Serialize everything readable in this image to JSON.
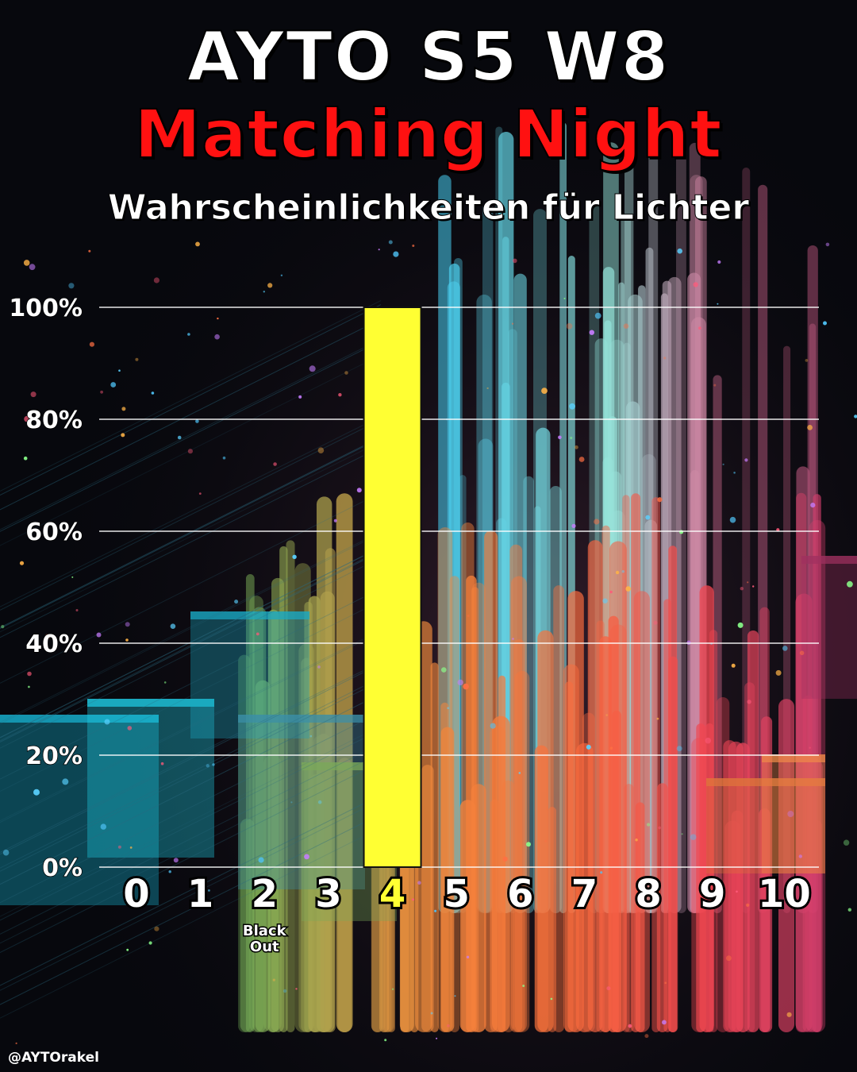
{
  "title": "AYTO S5 W8",
  "subtitle": "Matching Night",
  "description": "Wahrscheinlichkeiten für Lichter",
  "credit": "@AYTOrakel",
  "colors": {
    "title": "#ffffff",
    "subtitle": "#ff1111",
    "bar": "#ffff33",
    "highlight_label": "#ffff33",
    "label": "#ffffff",
    "gridline": "#ffffff"
  },
  "chart_data": {
    "type": "bar",
    "title": "Wahrscheinlichkeiten für Lichter",
    "xlabel": "",
    "ylabel": "",
    "categories": [
      "0",
      "1",
      "2",
      "3",
      "4",
      "5",
      "6",
      "7",
      "8",
      "9",
      "10"
    ],
    "values": [
      0,
      0,
      0,
      0,
      100,
      0,
      0,
      0,
      0,
      0,
      0
    ],
    "category_notes": {
      "2": "Black Out"
    },
    "highlight_category": "4",
    "yticks": [
      "0%",
      "20%",
      "40%",
      "60%",
      "80%",
      "100%"
    ],
    "ylim": [
      0,
      100
    ],
    "grid": true
  }
}
